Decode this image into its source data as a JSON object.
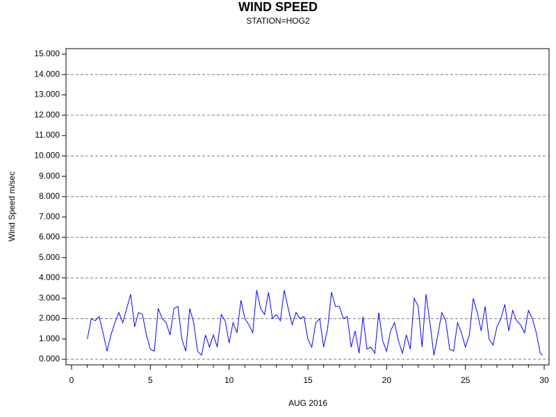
{
  "chart_data": {
    "type": "line",
    "title": "WIND SPEED",
    "subtitle": "STATION=HOG2",
    "xlabel": "AUG 2016",
    "ylabel": "Wind Speed m/sec",
    "xlim": [
      0,
      30
    ],
    "ylim": [
      0,
      15
    ],
    "xticks": [
      0,
      5,
      10,
      15,
      20,
      25,
      30
    ],
    "xminorticks": [
      1,
      2,
      3,
      4,
      6,
      7,
      8,
      9,
      11,
      12,
      13,
      14,
      16,
      17,
      18,
      19,
      21,
      22,
      23,
      24,
      26,
      27,
      28,
      29
    ],
    "yticks": [
      {
        "value": 0,
        "label": "0.000"
      },
      {
        "value": 1,
        "label": "1.000"
      },
      {
        "value": 2,
        "label": "2.000"
      },
      {
        "value": 3,
        "label": "3.000"
      },
      {
        "value": 4,
        "label": "4.000"
      },
      {
        "value": 5,
        "label": "5.000"
      },
      {
        "value": 6,
        "label": "6.000"
      },
      {
        "value": 7,
        "label": "7.000"
      },
      {
        "value": 8,
        "label": "8.000"
      },
      {
        "value": 9,
        "label": "9.000"
      },
      {
        "value": 10,
        "label": "10.000"
      },
      {
        "value": 11,
        "label": "11.000"
      },
      {
        "value": 12,
        "label": "12.000"
      },
      {
        "value": 13,
        "label": "13.000"
      },
      {
        "value": 14,
        "label": "14.000"
      },
      {
        "value": 15,
        "label": "15.000"
      }
    ],
    "ygrid": [
      0,
      2,
      4,
      6,
      8,
      10,
      12,
      14
    ],
    "series": [
      {
        "name": "Wind Speed",
        "color": "#0000ff",
        "x": [
          1,
          1.25,
          1.5,
          1.75,
          2,
          2.25,
          2.5,
          2.75,
          3,
          3.25,
          3.5,
          3.75,
          4,
          4.25,
          4.5,
          4.75,
          5,
          5.25,
          5.5,
          5.75,
          6,
          6.25,
          6.5,
          6.75,
          7,
          7.25,
          7.5,
          7.75,
          8,
          8.25,
          8.5,
          8.75,
          9,
          9.25,
          9.5,
          9.75,
          10,
          10.25,
          10.5,
          10.75,
          11,
          11.25,
          11.5,
          11.75,
          12,
          12.25,
          12.5,
          12.75,
          13,
          13.25,
          13.5,
          13.75,
          14,
          14.25,
          14.5,
          14.75,
          15,
          15.25,
          15.5,
          15.75,
          16,
          16.25,
          16.5,
          16.75,
          17,
          17.25,
          17.5,
          17.75,
          18,
          18.25,
          18.5,
          18.75,
          19,
          19.25,
          19.5,
          19.75,
          20,
          20.25,
          20.5,
          20.75,
          21,
          21.25,
          21.5,
          21.75,
          22,
          22.25,
          22.5,
          22.75,
          23,
          23.25,
          23.5,
          23.75,
          24,
          24.25,
          24.5,
          24.75,
          25,
          25.25,
          25.5,
          25.75,
          26,
          26.25,
          26.5,
          26.75,
          27,
          27.25,
          27.5,
          27.75,
          28,
          28.25,
          28.5,
          28.75,
          29,
          29.25,
          29.5,
          29.75,
          29.9
        ],
        "values": [
          1.0,
          2.0,
          1.9,
          2.1,
          1.3,
          0.4,
          1.2,
          1.8,
          2.3,
          1.8,
          2.5,
          3.2,
          1.6,
          2.3,
          2.2,
          1.2,
          0.5,
          0.4,
          2.5,
          2.0,
          1.8,
          1.2,
          2.5,
          2.6,
          1.0,
          0.4,
          2.5,
          1.8,
          0.4,
          0.2,
          1.2,
          0.6,
          1.2,
          0.6,
          2.2,
          1.9,
          0.8,
          1.8,
          1.3,
          2.9,
          2.0,
          1.7,
          1.3,
          3.4,
          2.5,
          2.2,
          3.3,
          2.0,
          2.2,
          1.9,
          3.4,
          2.5,
          1.7,
          2.3,
          2.0,
          2.1,
          1.0,
          0.6,
          1.8,
          2.0,
          0.6,
          1.5,
          3.3,
          2.6,
          2.6,
          2.0,
          2.1,
          0.6,
          1.4,
          0.3,
          2.1,
          0.5,
          0.6,
          0.3,
          2.3,
          0.9,
          0.4,
          1.4,
          1.8,
          0.9,
          0.3,
          1.2,
          0.5,
          3.0,
          2.6,
          0.6,
          3.2,
          1.8,
          0.2,
          1.2,
          2.3,
          1.9,
          0.5,
          0.4,
          1.8,
          1.3,
          0.6,
          1.2,
          3.0,
          2.3,
          1.4,
          2.6,
          1.0,
          0.7,
          1.6,
          2.0,
          2.7,
          1.4,
          2.4,
          1.9,
          1.7,
          1.3,
          2.4,
          2.0,
          1.3,
          0.3,
          0.2
        ]
      }
    ]
  }
}
